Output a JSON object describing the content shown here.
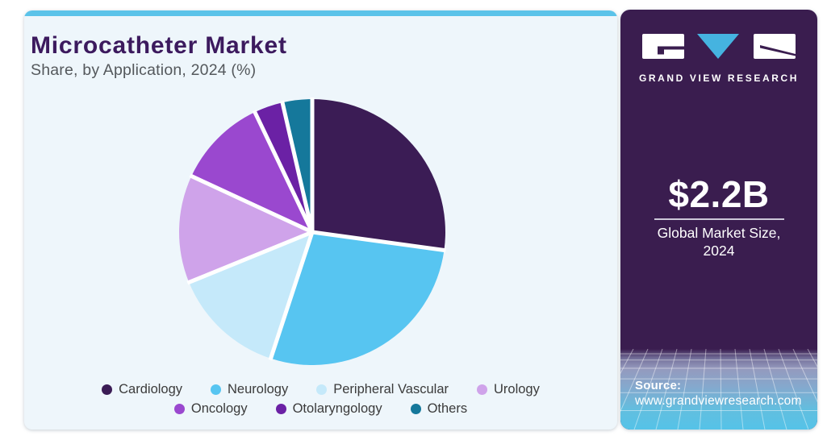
{
  "header": {
    "title": "Microcatheter Market",
    "subtitle": "Share, by Application, 2024 (%)"
  },
  "chart_data": {
    "type": "pie",
    "title": "Microcatheter Market Share, by Application, 2024 (%)",
    "labels": [
      "Cardiology",
      "Neurology",
      "Peripheral Vascular",
      "Urology",
      "Oncology",
      "Otolaryngology",
      "Others"
    ],
    "values": [
      27.2,
      27.9,
      13.8,
      13.1,
      11.0,
      3.5,
      3.6
    ],
    "colors": [
      "#3b1c55",
      "#57c5f1",
      "#c5e9fa",
      "#cfa3ea",
      "#9a48cf",
      "#6b21a5",
      "#15789b"
    ],
    "start_angle_deg": 0,
    "legend_position": "bottom",
    "legend_rows": [
      4,
      3
    ],
    "slice_gap_color": "#ffffff"
  },
  "panel": {
    "brand": "GRAND VIEW RESEARCH",
    "market_size_value": "$2.2B",
    "market_size_label": "Global Market Size, 2024",
    "source_label": "Source:",
    "source_url": "www.grandviewresearch.com",
    "panel_color": "#3a1d4f",
    "accent_color": "#45b3e0"
  }
}
